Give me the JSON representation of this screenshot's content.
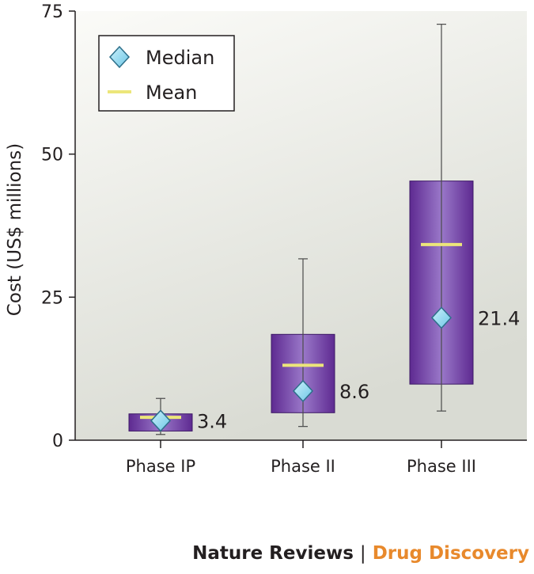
{
  "chart_data": {
    "type": "box",
    "title": "",
    "xlabel": "",
    "ylabel": "Cost (US$ millions)",
    "ylim": [
      0,
      75
    ],
    "yticks": [
      0,
      25,
      50,
      75
    ],
    "grid": false,
    "legend_position": "top-left",
    "legend": [
      {
        "label": "Median",
        "marker": "diamond"
      },
      {
        "label": "Mean",
        "marker": "line"
      }
    ],
    "categories": [
      "Phase IP",
      "Phase II",
      "Phase III"
    ],
    "boxes": [
      {
        "category": "Phase IP",
        "whisker_low": 1.0,
        "q1": 1.6,
        "median": 3.4,
        "mean": 4.0,
        "q3": 4.6,
        "whisker_high": 7.3,
        "median_label": "3.4"
      },
      {
        "category": "Phase II",
        "whisker_low": 2.4,
        "q1": 4.8,
        "median": 8.6,
        "mean": 13.1,
        "q3": 18.5,
        "whisker_high": 31.7,
        "median_label": "8.6"
      },
      {
        "category": "Phase III",
        "whisker_low": 5.1,
        "q1": 9.8,
        "median": 21.4,
        "mean": 34.2,
        "q3": 45.3,
        "whisker_high": 72.7,
        "median_label": "21.4"
      }
    ],
    "colors": {
      "box": "#5e2a91",
      "box_light": "#9a78c9",
      "mean_line": "#ece67a",
      "median_marker": "#7fd3ee",
      "median_border": "#2d6f8a",
      "plot_background_top": "#fbfbf8",
      "plot_background_bottom": "#d9dbd3",
      "axis": "#231f20"
    }
  },
  "credit": {
    "journal": "Nature Reviews",
    "separator": "|",
    "subjournal": "Drug Discovery"
  }
}
